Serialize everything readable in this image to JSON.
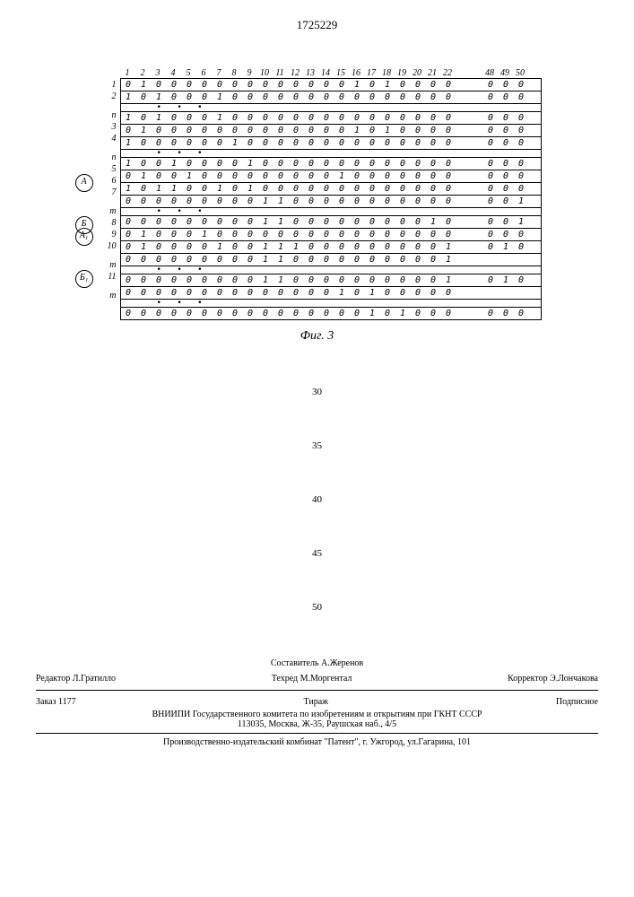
{
  "patent_number": "1725229",
  "figure": {
    "columns_main": [
      "1",
      "2",
      "3",
      "4",
      "5",
      "6",
      "7",
      "8",
      "9",
      "10",
      "11",
      "12",
      "13",
      "14",
      "15",
      "16",
      "17",
      "18",
      "19",
      "20",
      "21",
      "22"
    ],
    "columns_tail": [
      "48",
      "49",
      "50"
    ],
    "rows": [
      {
        "label": "1",
        "main": [
          "0",
          "1",
          "0",
          "0",
          "0",
          "0",
          "0",
          "0",
          "0",
          "0",
          "0",
          "0",
          "0",
          "0",
          "0",
          "1",
          "0",
          "1",
          "0",
          "0",
          "0",
          "0"
        ],
        "tail": [
          "0",
          "0",
          "0"
        ]
      },
      {
        "label": "2",
        "main": [
          "1",
          "0",
          "1",
          "0",
          "0",
          "0",
          "1",
          "0",
          "0",
          "0",
          "0",
          "0",
          "0",
          "0",
          "0",
          "0",
          "0",
          "0",
          "0",
          "0",
          "0",
          "0"
        ],
        "tail": [
          "0",
          "0",
          "0"
        ]
      },
      {
        "sep": true
      },
      {
        "label": "n",
        "main": [
          "1",
          "0",
          "1",
          "0",
          "0",
          "0",
          "1",
          "0",
          "0",
          "0",
          "0",
          "0",
          "0",
          "0",
          "0",
          "0",
          "0",
          "0",
          "0",
          "0",
          "0",
          "0"
        ],
        "tail": [
          "0",
          "0",
          "0"
        ]
      },
      {
        "label": "3",
        "main": [
          "0",
          "1",
          "0",
          "0",
          "0",
          "0",
          "0",
          "0",
          "0",
          "0",
          "0",
          "0",
          "0",
          "0",
          "0",
          "1",
          "0",
          "1",
          "0",
          "0",
          "0",
          "0"
        ],
        "tail": [
          "0",
          "0",
          "0"
        ]
      },
      {
        "label": "4",
        "main": [
          "1",
          "0",
          "0",
          "0",
          "0",
          "0",
          "0",
          "1",
          "0",
          "0",
          "0",
          "0",
          "0",
          "0",
          "0",
          "0",
          "0",
          "0",
          "0",
          "0",
          "0",
          "0"
        ],
        "tail": [
          "0",
          "0",
          "0"
        ]
      },
      {
        "sep": true
      },
      {
        "label": "n",
        "main": [
          "1",
          "0",
          "0",
          "1",
          "0",
          "0",
          "0",
          "0",
          "1",
          "0",
          "0",
          "0",
          "0",
          "0",
          "0",
          "0",
          "0",
          "0",
          "0",
          "0",
          "0",
          "0"
        ],
        "tail": [
          "0",
          "0",
          "0"
        ]
      },
      {
        "label": "5",
        "main": [
          "0",
          "1",
          "0",
          "0",
          "1",
          "0",
          "0",
          "0",
          "0",
          "0",
          "0",
          "0",
          "0",
          "0",
          "1",
          "0",
          "0",
          "0",
          "0",
          "0",
          "0",
          "0"
        ],
        "tail": [
          "0",
          "0",
          "0"
        ]
      },
      {
        "label": "6",
        "main": [
          "1",
          "0",
          "1",
          "1",
          "0",
          "0",
          "1",
          "0",
          "1",
          "0",
          "0",
          "0",
          "0",
          "0",
          "0",
          "0",
          "0",
          "0",
          "0",
          "0",
          "0",
          "0"
        ],
        "tail": [
          "0",
          "0",
          "0"
        ],
        "marker": "А"
      },
      {
        "label": "7",
        "main": [
          "0",
          "0",
          "0",
          "0",
          "0",
          "0",
          "0",
          "0",
          "0",
          "1",
          "1",
          "0",
          "0",
          "0",
          "0",
          "0",
          "0",
          "0",
          "0",
          "0",
          "0",
          "0"
        ],
        "tail": [
          "0",
          "0",
          "1"
        ]
      },
      {
        "sep": true
      },
      {
        "label": "m",
        "main": [
          "0",
          "0",
          "0",
          "0",
          "0",
          "0",
          "0",
          "0",
          "0",
          "1",
          "1",
          "0",
          "0",
          "0",
          "0",
          "0",
          "0",
          "0",
          "0",
          "0",
          "1",
          "0"
        ],
        "tail": [
          "0",
          "0",
          "1"
        ]
      },
      {
        "label": "8",
        "main": [
          "0",
          "1",
          "0",
          "0",
          "0",
          "1",
          "0",
          "0",
          "0",
          "0",
          "0",
          "0",
          "0",
          "0",
          "0",
          "0",
          "0",
          "0",
          "0",
          "0",
          "0",
          "0"
        ],
        "tail": [
          "0",
          "0",
          "0"
        ],
        "marker": "Б"
      },
      {
        "label": "9",
        "main": [
          "0",
          "1",
          "0",
          "0",
          "0",
          "0",
          "1",
          "0",
          "0",
          "1",
          "1",
          "1",
          "0",
          "0",
          "0",
          "0",
          "0",
          "0",
          "0",
          "0",
          "0",
          "1"
        ],
        "tail": [
          "0",
          "1",
          "0"
        ],
        "marker": "А₁"
      },
      {
        "label": "10",
        "main": [
          "0",
          "0",
          "0",
          "0",
          "0",
          "0",
          "0",
          "0",
          "0",
          "1",
          "1",
          "0",
          "0",
          "0",
          "0",
          "0",
          "0",
          "0",
          "0",
          "0",
          "0",
          "1"
        ],
        "tail": [
          "",
          "",
          ""
        ]
      },
      {
        "sep": true
      },
      {
        "label": "m",
        "main": [
          "0",
          "0",
          "0",
          "0",
          "0",
          "0",
          "0",
          "0",
          "0",
          "1",
          "1",
          "0",
          "0",
          "0",
          "0",
          "0",
          "0",
          "0",
          "0",
          "0",
          "0",
          "1"
        ],
        "tail": [
          "0",
          "1",
          "0"
        ]
      },
      {
        "label": "11",
        "main": [
          "0",
          "0",
          "0",
          "0",
          "0",
          "0",
          "0",
          "0",
          "0",
          "0",
          "0",
          "0",
          "0",
          "0",
          "1",
          "0",
          "1",
          "0",
          "0",
          "0",
          "0",
          "0"
        ],
        "tail": [
          "",
          "",
          ""
        ],
        "marker": "Б₁"
      },
      {
        "sep": true
      },
      {
        "label": "m",
        "main": [
          "0",
          "0",
          "0",
          "0",
          "0",
          "0",
          "0",
          "0",
          "0",
          "0",
          "0",
          "0",
          "0",
          "0",
          "0",
          "0",
          "1",
          "0",
          "1",
          "0",
          "0",
          "0"
        ],
        "tail": [
          "0",
          "0",
          "0"
        ]
      }
    ],
    "caption": "Фиг. 3"
  },
  "line_numbers": [
    "30",
    "35",
    "40",
    "45",
    "50"
  ],
  "footer": {
    "row1": {
      "compiler": "Составитель А.Жеренов"
    },
    "row2": {
      "editor": "Редактор Л.Гратилло",
      "tech": "Техред М.Моргентал",
      "corrector": "Корректор Э.Лончакова"
    },
    "row3": {
      "order": "Заказ 1177",
      "circ": "Тираж",
      "sub": "Подписное"
    },
    "line1": "ВНИИПИ Государственного комитета по изобретениям и открытиям при ГКНТ СССР",
    "line2": "113035, Москва, Ж-35, Раушская наб., 4/5",
    "line3": "Производственно-издательский комбинат \"Патент\", г. Ужгород, ул.Гагарина, 101"
  }
}
